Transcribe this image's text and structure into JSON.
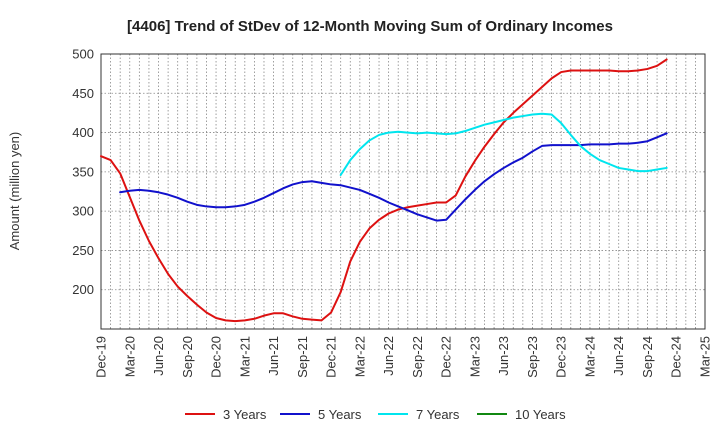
{
  "chart_data": {
    "type": "line",
    "title": "[4406]  Trend of StDev of 12-Month Moving Sum of Ordinary Incomes",
    "xlabel": "",
    "ylabel": "Amount (million yen)",
    "ylim": [
      150,
      500
    ],
    "yticks": [
      200,
      250,
      300,
      350,
      400,
      450,
      500
    ],
    "x_ticks": [
      "Dec-19",
      "Mar-20",
      "Jun-20",
      "Sep-20",
      "Dec-20",
      "Mar-21",
      "Jun-21",
      "Sep-21",
      "Dec-21",
      "Mar-22",
      "Jun-22",
      "Sep-22",
      "Dec-22",
      "Mar-23",
      "Jun-23",
      "Sep-23",
      "Dec-23",
      "Mar-24",
      "Jun-24",
      "Sep-24",
      "Dec-24",
      "Mar-25"
    ],
    "grid": true,
    "legend_position": "bottom",
    "series": [
      {
        "name": "3 Years",
        "color": "#dd1111",
        "points": [
          [
            0,
            370
          ],
          [
            1,
            365
          ],
          [
            2,
            348
          ],
          [
            3,
            318
          ],
          [
            4,
            288
          ],
          [
            5,
            262
          ],
          [
            6,
            240
          ],
          [
            7,
            220
          ],
          [
            8,
            204
          ],
          [
            9,
            192
          ],
          [
            10,
            181
          ],
          [
            11,
            171
          ],
          [
            12,
            164
          ],
          [
            13,
            161
          ],
          [
            14,
            160
          ],
          [
            15,
            161
          ],
          [
            16,
            163
          ],
          [
            17,
            167
          ],
          [
            18,
            170
          ],
          [
            19,
            170
          ],
          [
            20,
            166
          ],
          [
            21,
            163
          ],
          [
            22,
            162
          ],
          [
            23,
            161
          ],
          [
            24,
            171
          ],
          [
            25,
            197
          ],
          [
            26,
            236
          ],
          [
            27,
            261
          ],
          [
            28,
            278
          ],
          [
            29,
            289
          ],
          [
            30,
            297
          ],
          [
            31,
            302
          ],
          [
            32,
            305
          ],
          [
            33,
            307
          ],
          [
            34,
            309
          ],
          [
            35,
            311
          ],
          [
            36,
            311
          ],
          [
            37,
            320
          ],
          [
            38,
            344
          ],
          [
            39,
            364
          ],
          [
            40,
            382
          ],
          [
            41,
            398
          ],
          [
            42,
            413
          ],
          [
            43,
            425
          ],
          [
            44,
            436
          ],
          [
            45,
            447
          ],
          [
            46,
            458
          ],
          [
            47,
            469
          ],
          [
            48,
            477
          ],
          [
            49,
            479
          ],
          [
            50,
            479
          ],
          [
            51,
            479
          ],
          [
            52,
            479
          ],
          [
            53,
            479
          ],
          [
            54,
            478
          ],
          [
            55,
            478
          ],
          [
            56,
            479
          ],
          [
            57,
            481
          ],
          [
            58,
            485
          ],
          [
            59,
            493
          ]
        ]
      },
      {
        "name": "5 Years",
        "color": "#1111cc",
        "points": [
          [
            2,
            324
          ],
          [
            3,
            326
          ],
          [
            4,
            327
          ],
          [
            5,
            326
          ],
          [
            6,
            324
          ],
          [
            7,
            321
          ],
          [
            8,
            317
          ],
          [
            9,
            312
          ],
          [
            10,
            308
          ],
          [
            11,
            306
          ],
          [
            12,
            305
          ],
          [
            13,
            305
          ],
          [
            14,
            306
          ],
          [
            15,
            308
          ],
          [
            16,
            312
          ],
          [
            17,
            317
          ],
          [
            18,
            323
          ],
          [
            19,
            329
          ],
          [
            20,
            334
          ],
          [
            21,
            337
          ],
          [
            22,
            338
          ],
          [
            23,
            336
          ],
          [
            24,
            334
          ],
          [
            25,
            333
          ],
          [
            26,
            330
          ],
          [
            27,
            327
          ],
          [
            28,
            322
          ],
          [
            29,
            317
          ],
          [
            30,
            311
          ],
          [
            31,
            306
          ],
          [
            32,
            301
          ],
          [
            33,
            296
          ],
          [
            34,
            292
          ],
          [
            35,
            288
          ],
          [
            36,
            289
          ],
          [
            37,
            302
          ],
          [
            38,
            315
          ],
          [
            39,
            327
          ],
          [
            40,
            338
          ],
          [
            41,
            347
          ],
          [
            42,
            355
          ],
          [
            43,
            362
          ],
          [
            44,
            368
          ],
          [
            45,
            376
          ],
          [
            46,
            383
          ],
          [
            47,
            384
          ],
          [
            48,
            384
          ],
          [
            49,
            384
          ],
          [
            50,
            384
          ],
          [
            51,
            385
          ],
          [
            52,
            385
          ],
          [
            53,
            385
          ],
          [
            54,
            386
          ],
          [
            55,
            386
          ],
          [
            56,
            387
          ],
          [
            57,
            389
          ],
          [
            58,
            394
          ],
          [
            59,
            399
          ]
        ]
      },
      {
        "name": "7 Years",
        "color": "#00e5ee",
        "points": [
          [
            25,
            346
          ],
          [
            26,
            365
          ],
          [
            27,
            379
          ],
          [
            28,
            390
          ],
          [
            29,
            397
          ],
          [
            30,
            400
          ],
          [
            31,
            401
          ],
          [
            32,
            400
          ],
          [
            33,
            399
          ],
          [
            34,
            400
          ],
          [
            35,
            399
          ],
          [
            36,
            398
          ],
          [
            37,
            399
          ],
          [
            38,
            402
          ],
          [
            39,
            406
          ],
          [
            40,
            410
          ],
          [
            41,
            413
          ],
          [
            42,
            416
          ],
          [
            43,
            419
          ],
          [
            44,
            421
          ],
          [
            45,
            423
          ],
          [
            46,
            424
          ],
          [
            47,
            423
          ],
          [
            48,
            412
          ],
          [
            49,
            397
          ],
          [
            50,
            383
          ],
          [
            51,
            373
          ],
          [
            52,
            365
          ],
          [
            53,
            360
          ],
          [
            54,
            355
          ],
          [
            55,
            353
          ],
          [
            56,
            351
          ],
          [
            57,
            351
          ],
          [
            58,
            353
          ],
          [
            59,
            355
          ]
        ]
      },
      {
        "name": "10 Years",
        "color": "#118811",
        "points": []
      }
    ]
  }
}
